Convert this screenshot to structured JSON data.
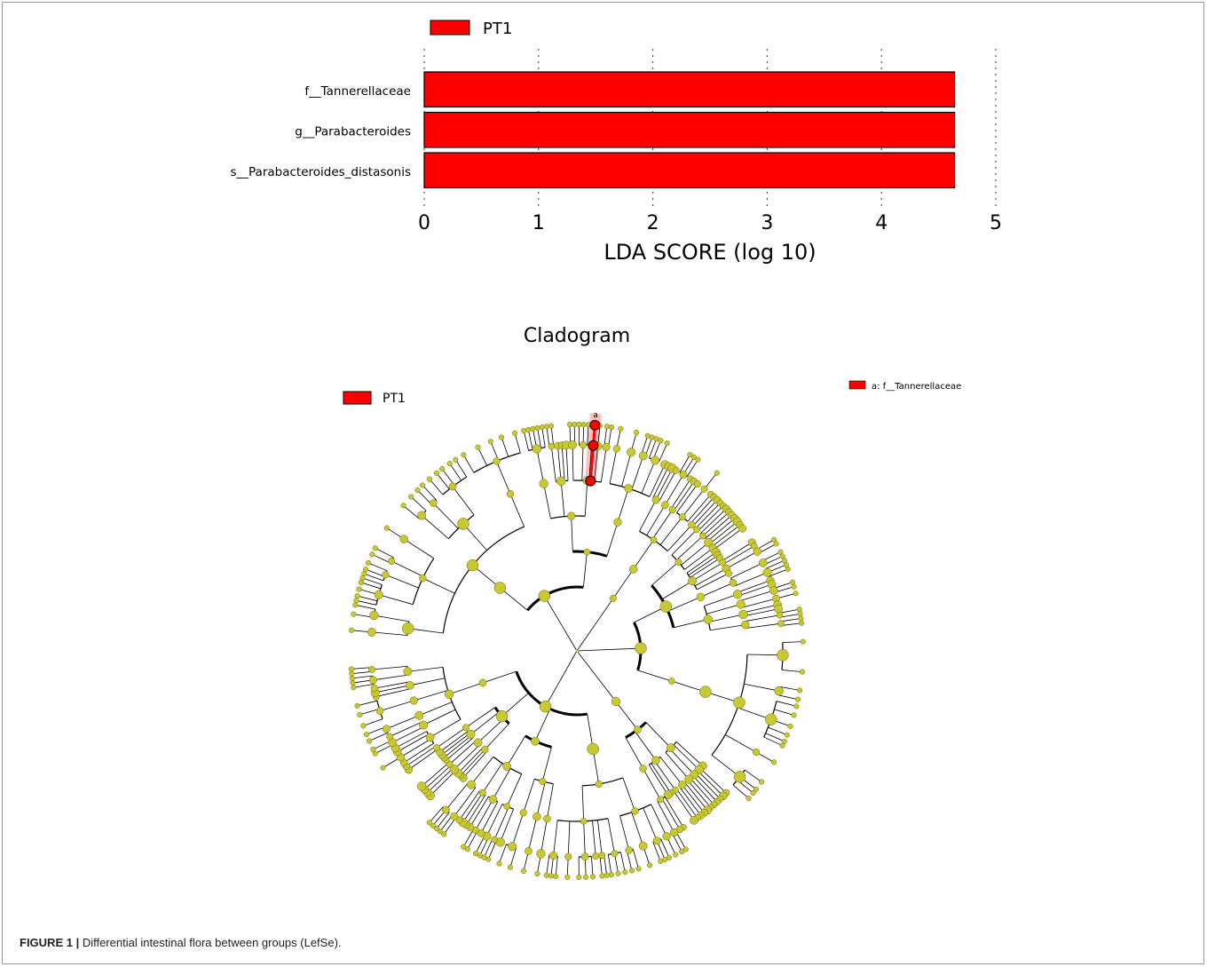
{
  "caption": {
    "label": "FIGURE 1 |",
    "text": " Differential intestinal flora between groups (LefSe)."
  },
  "chart_data": [
    {
      "type": "bar",
      "orientation": "horizontal",
      "legend": {
        "label": "PT1",
        "color": "#ff0000",
        "placement": "top-left"
      },
      "categories": [
        "f__Tannerellaceae",
        "g__Parabacteroides",
        "s__Parabacteroides_distasonis"
      ],
      "values": [
        4.64,
        4.64,
        4.64
      ],
      "xlabel": "LDA SCORE (log 10)",
      "xlim": [
        0,
        5
      ],
      "xticks": [
        "0",
        "1",
        "2",
        "3",
        "4",
        "5"
      ],
      "grid": "vertical dotted",
      "bar_color": "#ff0000"
    },
    {
      "type": "cladogram",
      "title": "Cladogram",
      "legend": {
        "label": "PT1",
        "color": "#ff0000",
        "placement": "top-left"
      },
      "annotation": {
        "marker": "a",
        "label": "a: f__Tannerellaceae",
        "color": "#ff0000"
      },
      "node_color": "#c8c832",
      "highlight_color": "#ff0000"
    }
  ]
}
